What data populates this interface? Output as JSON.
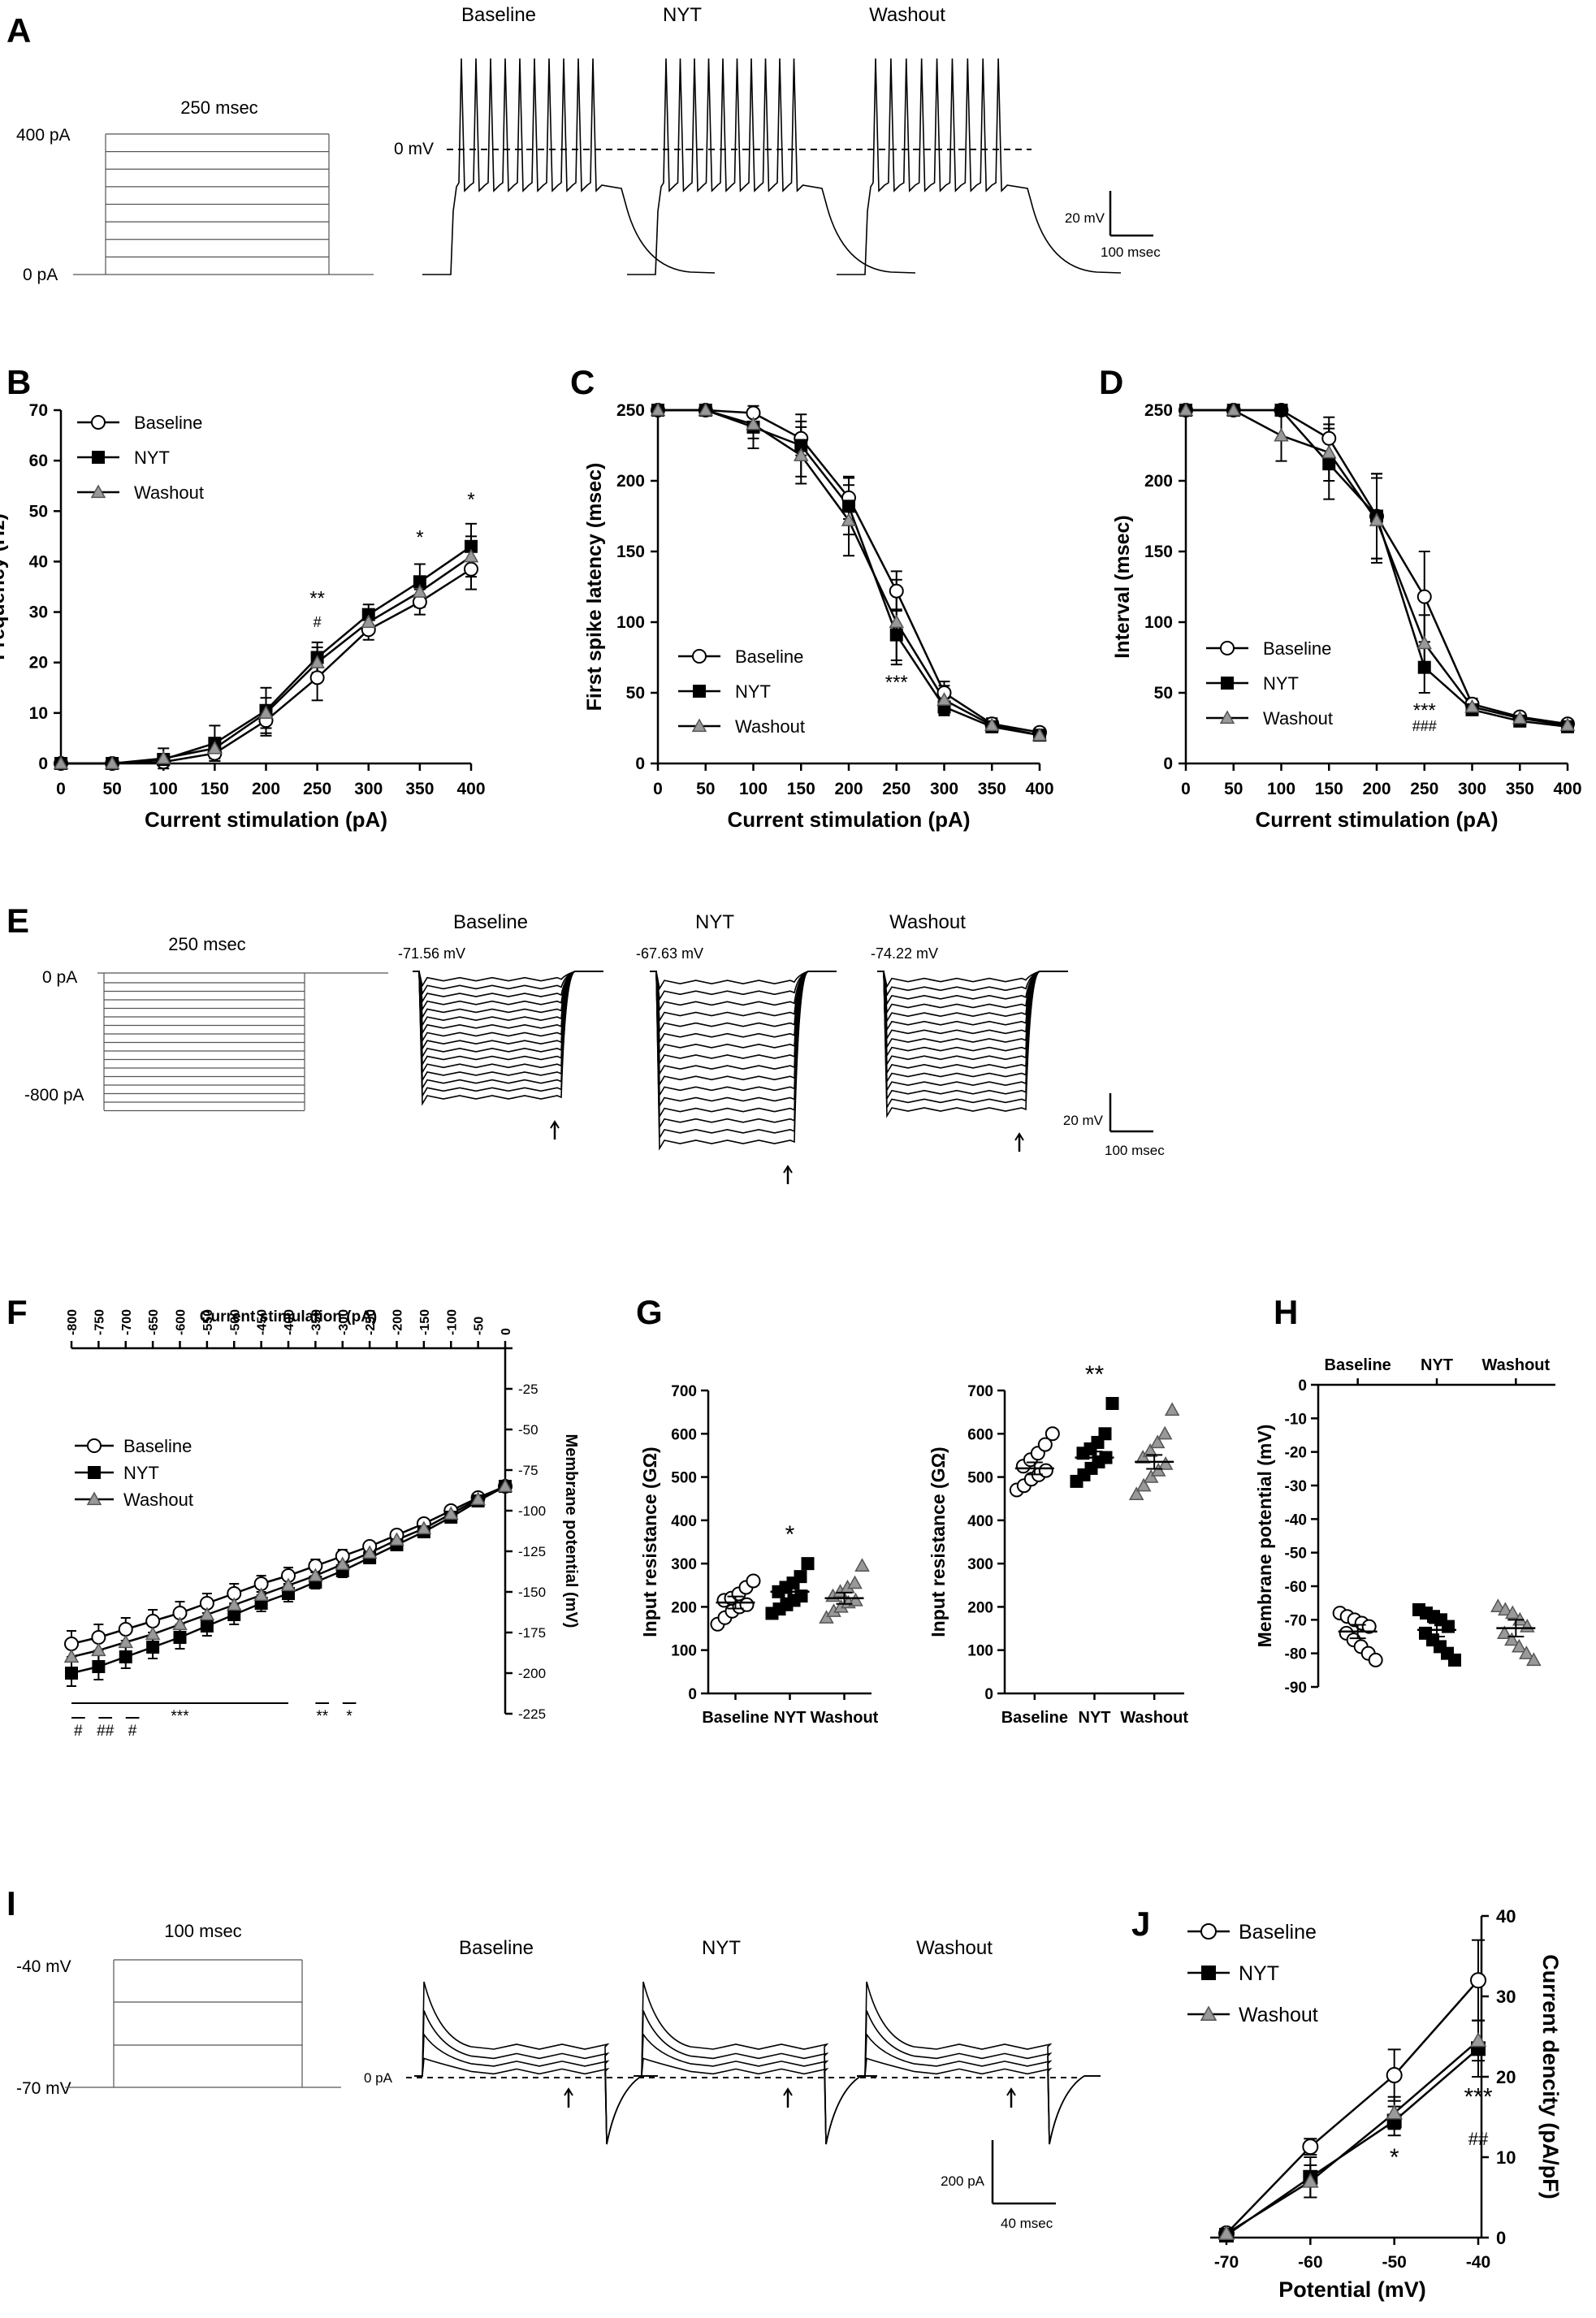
{
  "panels": {
    "A": {
      "letter": "A",
      "stim_duration": "250 msec",
      "stim_top": "400 pA",
      "stim_bottom": "0 pA",
      "conditions": [
        "Baseline",
        "NYT",
        "Washout"
      ],
      "zero_line": "0 mV",
      "scale_v": "20 mV",
      "scale_t": "100 msec"
    },
    "E": {
      "letter": "E",
      "stim_duration": "250 msec",
      "stim_top": "0 pA",
      "stim_bottom": "-800 pA",
      "conditions": [
        "Baseline",
        "NYT",
        "Washout"
      ],
      "resting": [
        "-71.56 mV",
        "-67.63 mV",
        "-74.22 mV"
      ],
      "scale_v": "20 mV",
      "scale_t": "100 msec"
    },
    "I": {
      "letter": "I",
      "stim_duration": "100 msec",
      "stim_top": "-40 mV",
      "stim_bottom": "-70 mV",
      "conditions": [
        "Baseline",
        "NYT",
        "Washout"
      ],
      "zero_line": "0 pA",
      "scale_i": "200 pA",
      "scale_t": "40 msec"
    }
  },
  "legend": [
    "Baseline",
    "NYT",
    "Washout"
  ],
  "chart_data": [
    {
      "id": "B",
      "type": "line",
      "letter": "B",
      "xlabel": "Current stimulation (pA)",
      "ylabel": "Frequency (Hz)",
      "x": [
        0,
        50,
        100,
        150,
        200,
        250,
        300,
        350,
        400
      ],
      "xlim": [
        0,
        400
      ],
      "ylim": [
        0,
        70
      ],
      "xticks": [
        0,
        50,
        100,
        150,
        200,
        250,
        300,
        350,
        400
      ],
      "yticks": [
        0,
        10,
        20,
        30,
        40,
        50,
        60,
        70
      ],
      "series": [
        {
          "name": "Baseline",
          "values": [
            0,
            0,
            0.3,
            2,
            8.5,
            17,
            26.5,
            32,
            38.5
          ],
          "err": [
            0,
            0,
            0.5,
            1.5,
            3,
            4.5,
            2,
            2.5,
            4
          ]
        },
        {
          "name": "NYT",
          "values": [
            0,
            0,
            0.8,
            4,
            10.5,
            21,
            29.5,
            36,
            43
          ],
          "err": [
            0,
            0,
            1,
            3.5,
            4.5,
            3,
            2,
            3.5,
            4.5
          ]
        },
        {
          "name": "Washout",
          "values": [
            0,
            0,
            1,
            3,
            10,
            20,
            28,
            34,
            41
          ],
          "err": [
            0,
            0,
            2,
            2,
            3,
            3,
            2,
            3,
            4
          ]
        }
      ],
      "annotations": [
        {
          "x": 250,
          "y": 31.5,
          "text": "**"
        },
        {
          "x": 250,
          "y": 27,
          "text": "#"
        },
        {
          "x": 350,
          "y": 43.5,
          "text": "*"
        },
        {
          "x": 400,
          "y": 51,
          "text": "*"
        }
      ],
      "legend_position": "top-left"
    },
    {
      "id": "C",
      "type": "line",
      "letter": "C",
      "xlabel": "Current stimulation (pA)",
      "ylabel": "First spike latency (msec)",
      "x": [
        0,
        50,
        100,
        150,
        200,
        250,
        300,
        350,
        400
      ],
      "xlim": [
        0,
        400
      ],
      "ylim": [
        0,
        250
      ],
      "xticks": [
        0,
        50,
        100,
        150,
        200,
        250,
        300,
        350,
        400
      ],
      "yticks": [
        0,
        50,
        100,
        150,
        200,
        250
      ],
      "series": [
        {
          "name": "Baseline",
          "values": [
            250,
            250,
            248,
            230,
            188,
            122,
            50,
            28,
            22
          ],
          "err": [
            0,
            0,
            3,
            12,
            15,
            14,
            8,
            4,
            3
          ]
        },
        {
          "name": "NYT",
          "values": [
            250,
            250,
            238,
            225,
            182,
            91,
            40,
            26,
            20
          ],
          "err": [
            0,
            0,
            15,
            22,
            20,
            18,
            6,
            3,
            2
          ]
        },
        {
          "name": "Washout",
          "values": [
            250,
            250,
            240,
            218,
            172,
            100,
            45,
            27,
            20
          ],
          "err": [
            0,
            0,
            10,
            20,
            25,
            30,
            10,
            5,
            3
          ]
        }
      ],
      "annotations": [
        {
          "x": 250,
          "y": 53,
          "text": "***"
        }
      ],
      "legend_position": "bottom-left"
    },
    {
      "id": "D",
      "type": "line",
      "letter": "D",
      "xlabel": "Current stimulation (pA)",
      "ylabel": "Interval (msec)",
      "x": [
        0,
        50,
        100,
        150,
        200,
        250,
        300,
        350,
        400
      ],
      "xlim": [
        0,
        400
      ],
      "ylim": [
        0,
        250
      ],
      "xticks": [
        0,
        50,
        100,
        150,
        200,
        250,
        300,
        350,
        400
      ],
      "yticks": [
        0,
        50,
        100,
        150,
        200,
        250
      ],
      "series": [
        {
          "name": "Baseline",
          "values": [
            250,
            250,
            250,
            230,
            175,
            118,
            42,
            33,
            28
          ],
          "err": [
            0,
            0,
            0,
            15,
            30,
            32,
            4,
            3,
            2
          ]
        },
        {
          "name": "NYT",
          "values": [
            250,
            250,
            250,
            212,
            175,
            68,
            38,
            30,
            26
          ],
          "err": [
            0,
            0,
            0,
            25,
            30,
            18,
            3,
            3,
            2
          ]
        },
        {
          "name": "Washout",
          "values": [
            250,
            250,
            232,
            220,
            172,
            85,
            40,
            32,
            27
          ],
          "err": [
            0,
            0,
            18,
            20,
            30,
            20,
            4,
            3,
            2
          ]
        }
      ],
      "annotations": [
        {
          "x": 250,
          "y": 33,
          "text": "***"
        },
        {
          "x": 250,
          "y": 23,
          "text": "###"
        }
      ],
      "legend_position": "bottom-left"
    },
    {
      "id": "F",
      "type": "line",
      "letter": "F",
      "xlabel": "Current stimulation (pA)",
      "ylabel": "Membrane potential (mV)",
      "x": [
        -800,
        -750,
        -700,
        -650,
        -600,
        -550,
        -500,
        -450,
        -400,
        -350,
        -300,
        -250,
        -200,
        -150,
        -100,
        -50,
        0
      ],
      "xticks": [
        -800,
        -750,
        -700,
        -650,
        -600,
        -550,
        -500,
        -450,
        -400,
        -350,
        -300,
        -250,
        -200,
        -150,
        -100,
        -50,
        0
      ],
      "xlim": [
        -800,
        0
      ],
      "ylim": [
        -225,
        0
      ],
      "yticks": [
        0,
        -25,
        -50,
        -75,
        -100,
        -125,
        -150,
        -175,
        -200,
        -225
      ],
      "series": [
        {
          "name": "Baseline",
          "values": [
            -182,
            -178,
            -173,
            -168,
            -163,
            -157,
            -151,
            -145,
            -140,
            -134,
            -128,
            -122,
            -115,
            -108,
            -100,
            -92,
            -85
          ],
          "err": [
            8,
            8,
            7,
            7,
            7,
            6,
            6,
            5,
            5,
            4,
            4,
            3,
            3,
            3,
            2,
            2,
            2
          ]
        },
        {
          "name": "NYT",
          "values": [
            -200,
            -196,
            -190,
            -184,
            -178,
            -171,
            -164,
            -157,
            -151,
            -144,
            -137,
            -129,
            -121,
            -113,
            -104,
            -94,
            -85
          ],
          "err": [
            8,
            8,
            7,
            7,
            7,
            6,
            6,
            5,
            5,
            4,
            4,
            3,
            3,
            3,
            2,
            2,
            2
          ]
        },
        {
          "name": "Washout",
          "values": [
            -190,
            -186,
            -181,
            -176,
            -170,
            -164,
            -158,
            -152,
            -146,
            -140,
            -133,
            -126,
            -118,
            -111,
            -102,
            -93,
            -85
          ],
          "err": [
            8,
            8,
            7,
            7,
            7,
            6,
            6,
            5,
            5,
            4,
            4,
            3,
            3,
            3,
            2,
            2,
            2
          ]
        }
      ],
      "significance": [
        {
          "from": -800,
          "to": -775,
          "row": 1,
          "text": "#"
        },
        {
          "from": -750,
          "to": -725,
          "row": 1,
          "text": "##"
        },
        {
          "from": -700,
          "to": -675,
          "row": 1,
          "text": "#"
        },
        {
          "from": -800,
          "to": -400,
          "row": 0,
          "text": "***"
        },
        {
          "from": -350,
          "to": -325,
          "row": 0,
          "text": "**"
        },
        {
          "from": -300,
          "to": -275,
          "row": 0,
          "text": "*"
        }
      ],
      "legend_position": "middle-left"
    },
    {
      "id": "G1",
      "type": "scatter",
      "letter": "G",
      "ylabel": "Input resistance (GΩ)",
      "categories": [
        "Baseline",
        "NYT",
        "Washout"
      ],
      "ylim": [
        0,
        700
      ],
      "yticks": [
        0,
        100,
        200,
        300,
        400,
        500,
        600,
        700
      ],
      "groups": [
        {
          "name": "Baseline",
          "mean": 210,
          "sem": 14,
          "points": [
            160,
            175,
            190,
            200,
            205,
            215,
            220,
            230,
            245,
            260
          ]
        },
        {
          "name": "NYT",
          "mean": 235,
          "sem": 15,
          "points": [
            185,
            195,
            205,
            215,
            225,
            235,
            245,
            255,
            270,
            300
          ]
        },
        {
          "name": "Washout",
          "mean": 220,
          "sem": 13,
          "points": [
            175,
            190,
            200,
            210,
            215,
            225,
            235,
            245,
            255,
            295
          ]
        }
      ],
      "annotations": [
        {
          "group": "NYT",
          "text": "*"
        }
      ]
    },
    {
      "id": "G2",
      "type": "scatter",
      "letter": "",
      "ylabel": "Input resistance (GΩ)",
      "categories": [
        "Baseline",
        "NYT",
        "Washout"
      ],
      "ylim": [
        0,
        700
      ],
      "yticks": [
        0,
        100,
        200,
        300,
        400,
        500,
        600,
        700
      ],
      "groups": [
        {
          "name": "Baseline",
          "mean": 520,
          "sem": 14,
          "points": [
            470,
            480,
            495,
            505,
            515,
            525,
            540,
            555,
            575,
            600
          ]
        },
        {
          "name": "NYT",
          "mean": 545,
          "sem": 14,
          "points": [
            490,
            505,
            520,
            535,
            545,
            555,
            565,
            580,
            600,
            670
          ]
        },
        {
          "name": "Washout",
          "mean": 535,
          "sem": 16,
          "points": [
            460,
            480,
            500,
            515,
            530,
            545,
            560,
            580,
            600,
            655
          ]
        }
      ],
      "annotations": [
        {
          "group": "NYT",
          "text": "**"
        }
      ]
    },
    {
      "id": "H",
      "type": "scatter",
      "letter": "H",
      "ylabel": "Membrane potential (mV)",
      "categories": [
        "Baseline",
        "NYT",
        "Washout"
      ],
      "ylim": [
        -90,
        0
      ],
      "yticks": [
        0,
        -10,
        -20,
        -30,
        -40,
        -50,
        -60,
        -70,
        -80,
        -90
      ],
      "groups": [
        {
          "name": "Baseline",
          "mean": -73.5,
          "sem": 2,
          "points": [
            -68,
            -69,
            -70,
            -71,
            -72,
            -74,
            -76,
            -78,
            -80,
            -82
          ]
        },
        {
          "name": "NYT",
          "mean": -73,
          "sem": 2,
          "points": [
            -67,
            -68,
            -69,
            -70,
            -72,
            -74,
            -76,
            -78,
            -80,
            -82
          ]
        },
        {
          "name": "Washout",
          "mean": -72.5,
          "sem": 2.5,
          "points": [
            -66,
            -67,
            -68,
            -70,
            -72,
            -74,
            -76,
            -78,
            -80,
            -82
          ]
        }
      ]
    },
    {
      "id": "J",
      "type": "line",
      "letter": "J",
      "xlabel": "Potential (mV)",
      "ylabel": "Current dencity (pA/pF)",
      "x": [
        -70,
        -60,
        -50,
        -40
      ],
      "xlim": [
        -70,
        -40
      ],
      "ylim": [
        0,
        40
      ],
      "xticks": [
        -70,
        -60,
        -50,
        -40
      ],
      "yticks": [
        0,
        10,
        20,
        30,
        40
      ],
      "series": [
        {
          "name": "Baseline",
          "values": [
            0.5,
            11.3,
            20.2,
            32
          ],
          "err": [
            0.5,
            1,
            3.2,
            5
          ]
        },
        {
          "name": "NYT",
          "values": [
            0.3,
            7.5,
            14.5,
            23.5
          ],
          "err": [
            0.5,
            2.5,
            1.8,
            3.5
          ]
        },
        {
          "name": "Washout",
          "values": [
            0.5,
            7,
            15.5,
            24.5
          ],
          "err": [
            0.5,
            2,
            2,
            2.5
          ]
        }
      ],
      "annotations": [
        {
          "x": -50,
          "y": 9,
          "text": "*"
        },
        {
          "x": -40,
          "y": 16.5,
          "text": "***"
        },
        {
          "x": -40,
          "y": 11.5,
          "text": "##"
        }
      ],
      "legend_position": "top-left"
    }
  ]
}
